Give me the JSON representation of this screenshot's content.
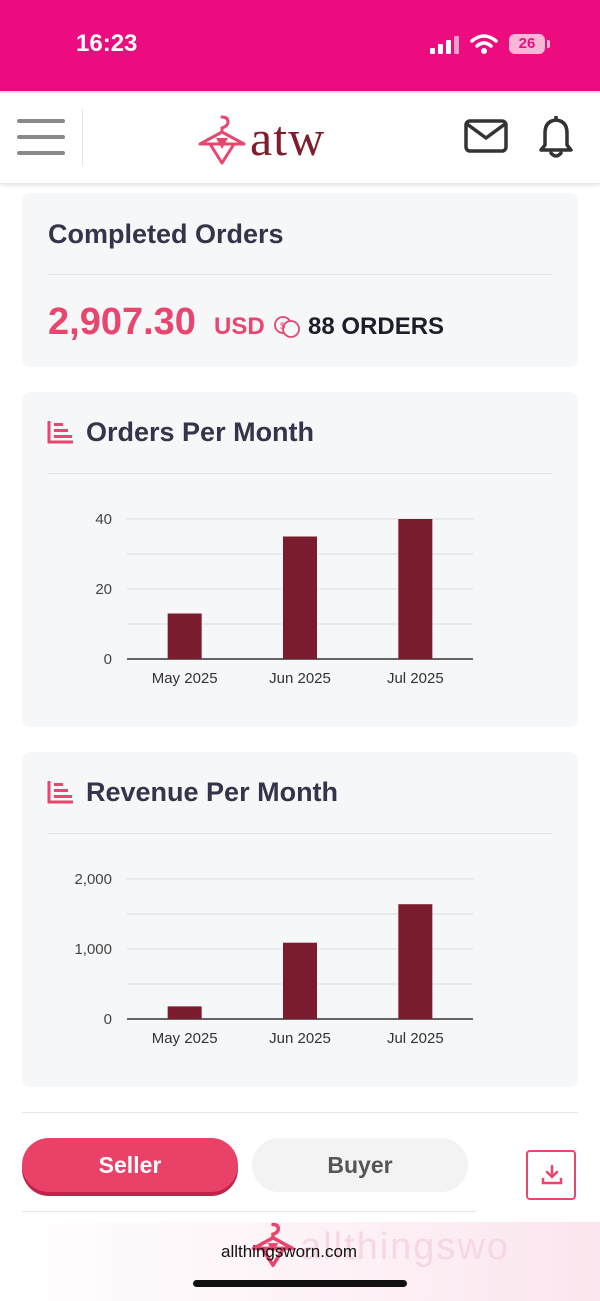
{
  "status_bar": {
    "time": "16:23",
    "battery_level": "26",
    "icons": [
      "signal-icon",
      "wifi-icon",
      "battery-icon"
    ]
  },
  "header": {
    "logo_text": "atw",
    "icons": [
      "menu-icon",
      "hanger-logo-icon",
      "mail-icon",
      "bell-icon"
    ]
  },
  "completed_orders": {
    "title": "Completed Orders",
    "amount": "2,907.30",
    "currency": "USD",
    "orders_label": "88 ORDERS"
  },
  "orders_chart": {
    "title": "Orders Per Month",
    "icon": "bar-chart-icon"
  },
  "revenue_chart": {
    "title": "Revenue Per Month",
    "icon": "bar-chart-icon"
  },
  "chart_data": [
    {
      "type": "bar",
      "title": "Orders Per Month",
      "categories": [
        "May 2025",
        "Jun 2025",
        "Jul 2025"
      ],
      "values": [
        13,
        35,
        40
      ],
      "ylim": [
        0,
        40
      ],
      "yticks": [
        "0",
        "20",
        "40"
      ],
      "xlabel": "",
      "ylabel": "",
      "grid": true,
      "color": "#7b1c2e"
    },
    {
      "type": "bar",
      "title": "Revenue Per Month",
      "categories": [
        "May 2025",
        "Jun 2025",
        "Jul 2025"
      ],
      "values": [
        180,
        1090,
        1640
      ],
      "ylim": [
        0,
        2000
      ],
      "yticks": [
        "0",
        "1,000",
        "2,000"
      ],
      "xlabel": "",
      "ylabel": "",
      "grid": true,
      "color": "#7b1c2e"
    }
  ],
  "tabs": {
    "seller": "Seller",
    "buyer": "Buyer",
    "active": "Seller"
  },
  "footer": {
    "domain": "allthingsworn.com",
    "watermark": "allthingswo"
  },
  "colors": {
    "brand_pink": "#ec0c7f",
    "accent": "#e8456f",
    "bar": "#7b1c2e",
    "logo": "#7f1d2d"
  }
}
